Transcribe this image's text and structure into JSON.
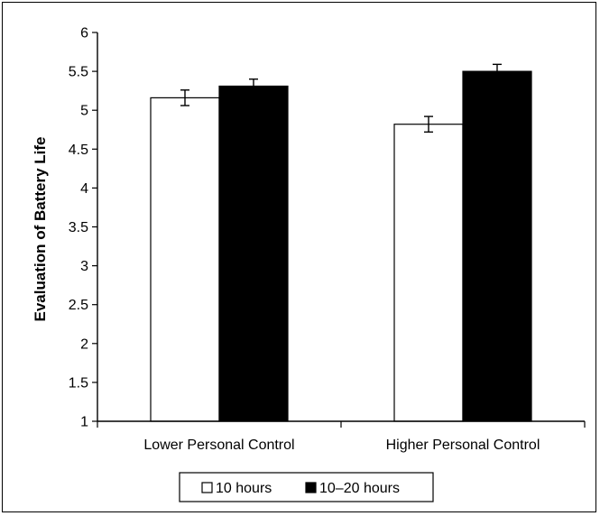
{
  "chart_data": {
    "type": "bar",
    "title": "",
    "xlabel": "",
    "ylabel": "Evaluation of Battery Life",
    "categories": [
      "Lower Personal Control",
      "Higher Personal Control"
    ],
    "series": [
      {
        "name": "10 hours",
        "values": [
          5.16,
          4.82
        ],
        "errors": [
          0.1,
          0.1
        ],
        "color": "#ffffff"
      },
      {
        "name": "10–20 hours",
        "values": [
          5.31,
          5.5
        ],
        "errors": [
          0.09,
          0.09
        ],
        "color": "#000000"
      }
    ],
    "ylim": [
      1,
      6
    ],
    "yticks": [
      "1",
      "1.5",
      "2",
      "2.5",
      "3",
      "3.5",
      "4",
      "4.5",
      "5",
      "5.5",
      "6"
    ],
    "grid": false,
    "legend": "bottom"
  }
}
